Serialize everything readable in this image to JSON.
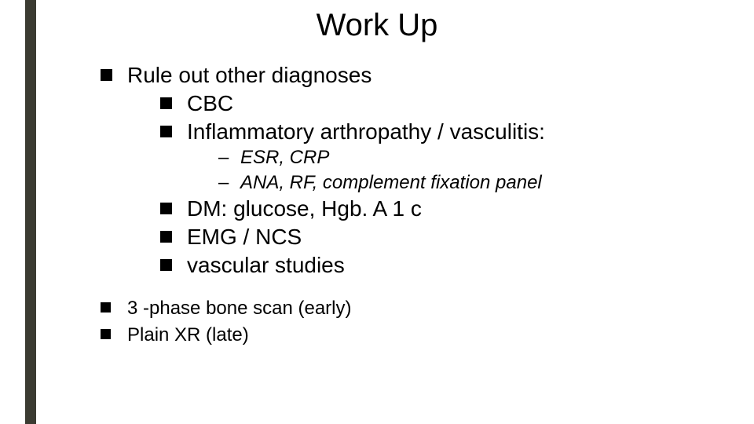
{
  "slide": {
    "title": "Work Up",
    "accent_color": "#3b3b32",
    "background_color": "#ffffff",
    "text_color": "#000000",
    "title_fontsize": 40,
    "body_fontsize": 28,
    "sub_fontsize": 24,
    "bullets_l1": [
      {
        "text": "Rule out other diagnoses",
        "children": [
          {
            "text": "CBC"
          },
          {
            "text": "Inflammatory arthropathy / vasculitis:",
            "sub": [
              "ESR, CRP",
              "ANA, RF, complement fixation panel"
            ]
          },
          {
            "text": "DM:  glucose, Hgb. A 1 c"
          },
          {
            "text": "EMG / NCS"
          },
          {
            "text": "vascular studies"
          }
        ]
      },
      {
        "text": "3 -phase bone scan (early)",
        "small": true
      },
      {
        "text": "Plain XR (late)",
        "small": true
      }
    ]
  }
}
